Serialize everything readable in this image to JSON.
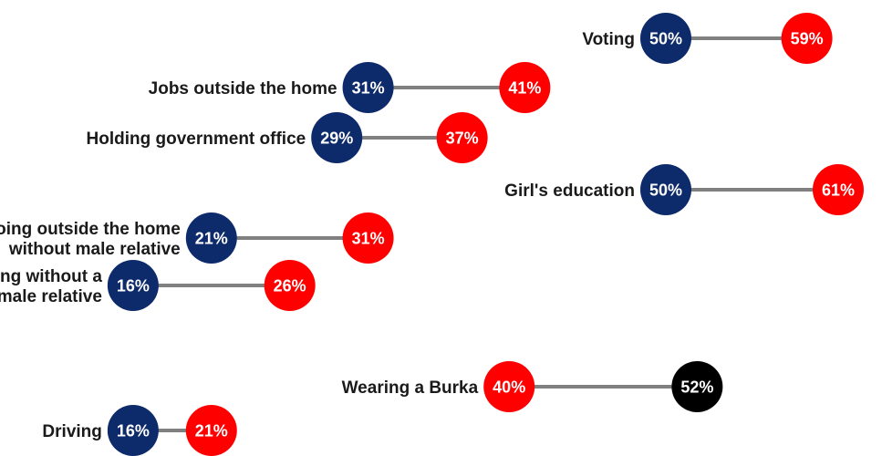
{
  "chart_data": {
    "type": "dumbbell",
    "title": "",
    "xlabel": "",
    "ylabel": "",
    "colors": {
      "navy": "#0d2a6b",
      "red": "#ff0000",
      "black": "#000000",
      "connector": "#808080"
    },
    "rows": [
      {
        "category": "Voting",
        "start_label": "50%",
        "end_label": "59%",
        "start_value": 50,
        "end_value": 59,
        "start_color": "navy",
        "end_color": "red"
      },
      {
        "category": "Jobs outside the home",
        "start_label": "31%",
        "end_label": "41%",
        "start_value": 31,
        "end_value": 41,
        "start_color": "navy",
        "end_color": "red"
      },
      {
        "category": "Holding government office",
        "start_label": "29%",
        "end_label": "37%",
        "start_value": 29,
        "end_value": 37,
        "start_color": "navy",
        "end_color": "red"
      },
      {
        "category": "Girl's education",
        "start_label": "50%",
        "end_label": "61%",
        "start_value": 50,
        "end_value": 61,
        "start_color": "navy",
        "end_color": "red"
      },
      {
        "category": "Going outside the home\nwithout male relative",
        "start_label": "21%",
        "end_label": "31%",
        "start_value": 21,
        "end_value": 31,
        "start_color": "navy",
        "end_color": "red"
      },
      {
        "category": "Traveling without a\nmale relative",
        "start_label": "16%",
        "end_label": "26%",
        "start_value": 16,
        "end_value": 26,
        "start_color": "navy",
        "end_color": "red"
      },
      {
        "category": "Wearing a Burka",
        "start_label": "40%",
        "end_label": "52%",
        "start_value": 40,
        "end_value": 52,
        "start_color": "red",
        "end_color": "black"
      },
      {
        "category": "Driving",
        "start_label": "16%",
        "end_label": "21%",
        "start_value": 16,
        "end_value": 21,
        "start_color": "navy",
        "end_color": "red"
      }
    ]
  }
}
